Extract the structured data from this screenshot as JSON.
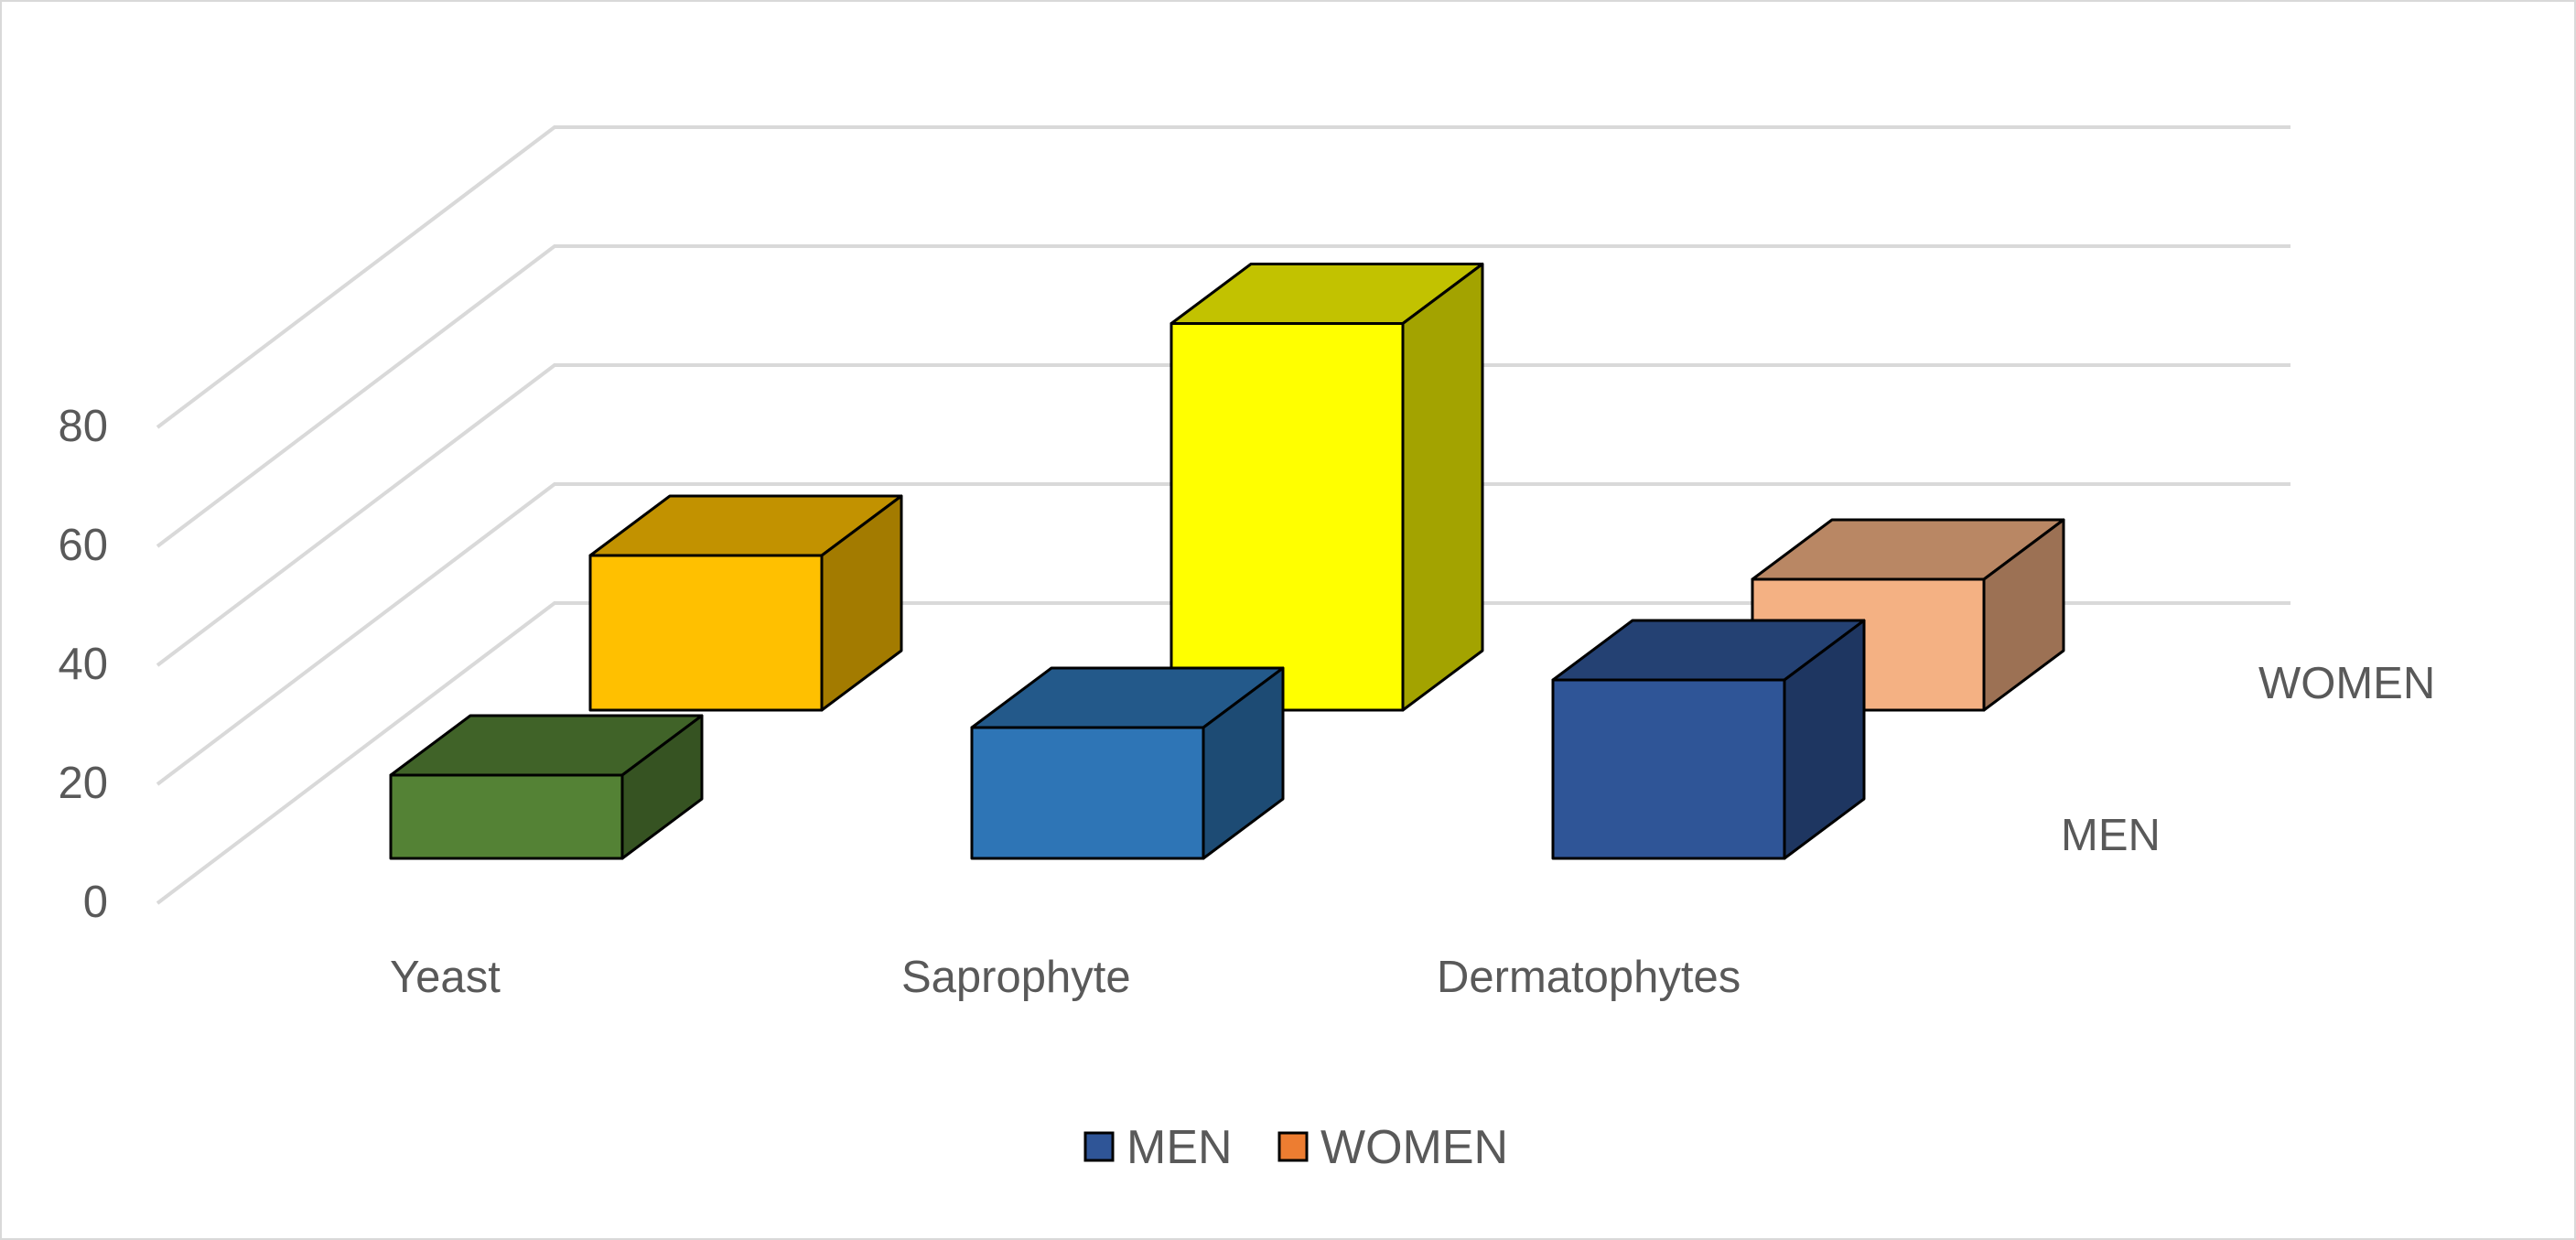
{
  "chart_data": {
    "type": "bar",
    "three_d": true,
    "categories": [
      "Yeast",
      "Saprophyte",
      "Dermatophytes"
    ],
    "series": [
      {
        "name": "MEN",
        "legend_color": "#2f5597",
        "values": [
          14,
          22,
          30
        ],
        "colors": [
          "#548235",
          "#2e75b6",
          "#2f5597"
        ]
      },
      {
        "name": "WOMEN",
        "legend_color": "#ed7d31",
        "values": [
          26,
          65,
          22
        ],
        "colors": [
          "#ffc000",
          "#ffff00",
          "#f4b183"
        ]
      }
    ],
    "y_ticks": [
      "0",
      "20",
      "40",
      "60",
      "80"
    ],
    "ylim": [
      0,
      80
    ],
    "grid": true,
    "legend": "bottom"
  }
}
